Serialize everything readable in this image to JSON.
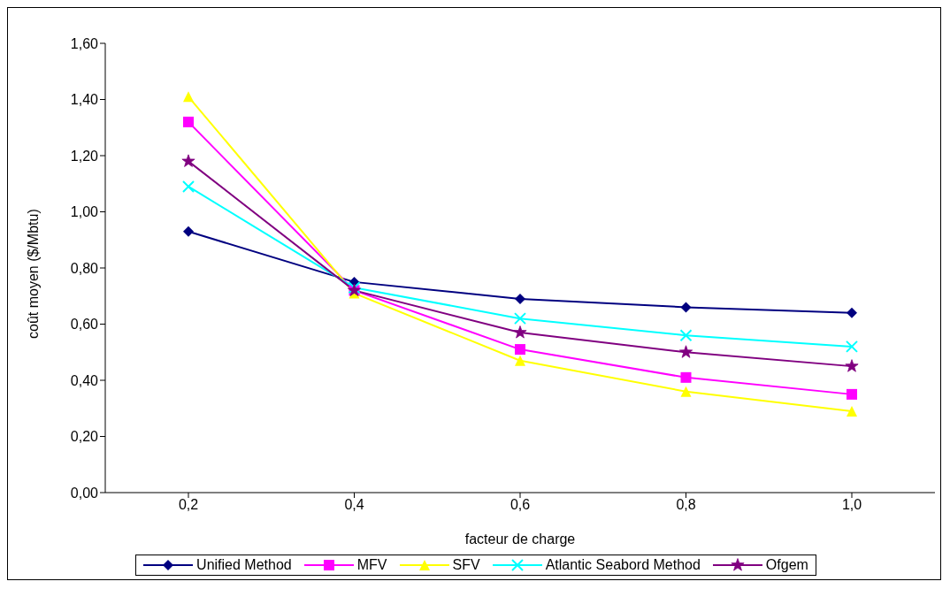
{
  "chart_data": {
    "type": "line",
    "xlabel": "facteur de charge",
    "ylabel": "coût moyen ($/Mbtu)",
    "categories": [
      "0,2",
      "0,4",
      "0,6",
      "0,8",
      "1,0"
    ],
    "series": [
      {
        "name": "Unified Method",
        "color": "#000080",
        "marker": "diamond",
        "values": [
          0.93,
          0.75,
          0.69,
          0.66,
          0.64
        ]
      },
      {
        "name": "MFV",
        "color": "#ff00ff",
        "marker": "square",
        "values": [
          1.32,
          0.72,
          0.51,
          0.41,
          0.35
        ]
      },
      {
        "name": "SFV",
        "color": "#ffff00",
        "marker": "triangle",
        "values": [
          1.41,
          0.71,
          0.47,
          0.36,
          0.29
        ]
      },
      {
        "name": "Atlantic Seabord Method",
        "color": "#00ffff",
        "marker": "cross",
        "values": [
          1.09,
          0.73,
          0.62,
          0.56,
          0.52
        ]
      },
      {
        "name": "Ofgem",
        "color": "#800080",
        "marker": "star",
        "values": [
          1.18,
          0.72,
          0.57,
          0.5,
          0.45
        ]
      }
    ],
    "ylim": [
      0,
      1.6
    ],
    "yticks": [
      {
        "value": 0,
        "label": "0,00"
      },
      {
        "value": 0.2,
        "label": "0,20"
      },
      {
        "value": 0.4,
        "label": "0,40"
      },
      {
        "value": 0.6,
        "label": "0,60"
      },
      {
        "value": 0.8,
        "label": "0,80"
      },
      {
        "value": 1.0,
        "label": "1,00"
      },
      {
        "value": 1.2,
        "label": "1,20"
      },
      {
        "value": 1.4,
        "label": "1,40"
      },
      {
        "value": 1.6,
        "label": "1,60"
      }
    ],
    "grid": false,
    "legend": "bottom",
    "line_style": "solid"
  }
}
